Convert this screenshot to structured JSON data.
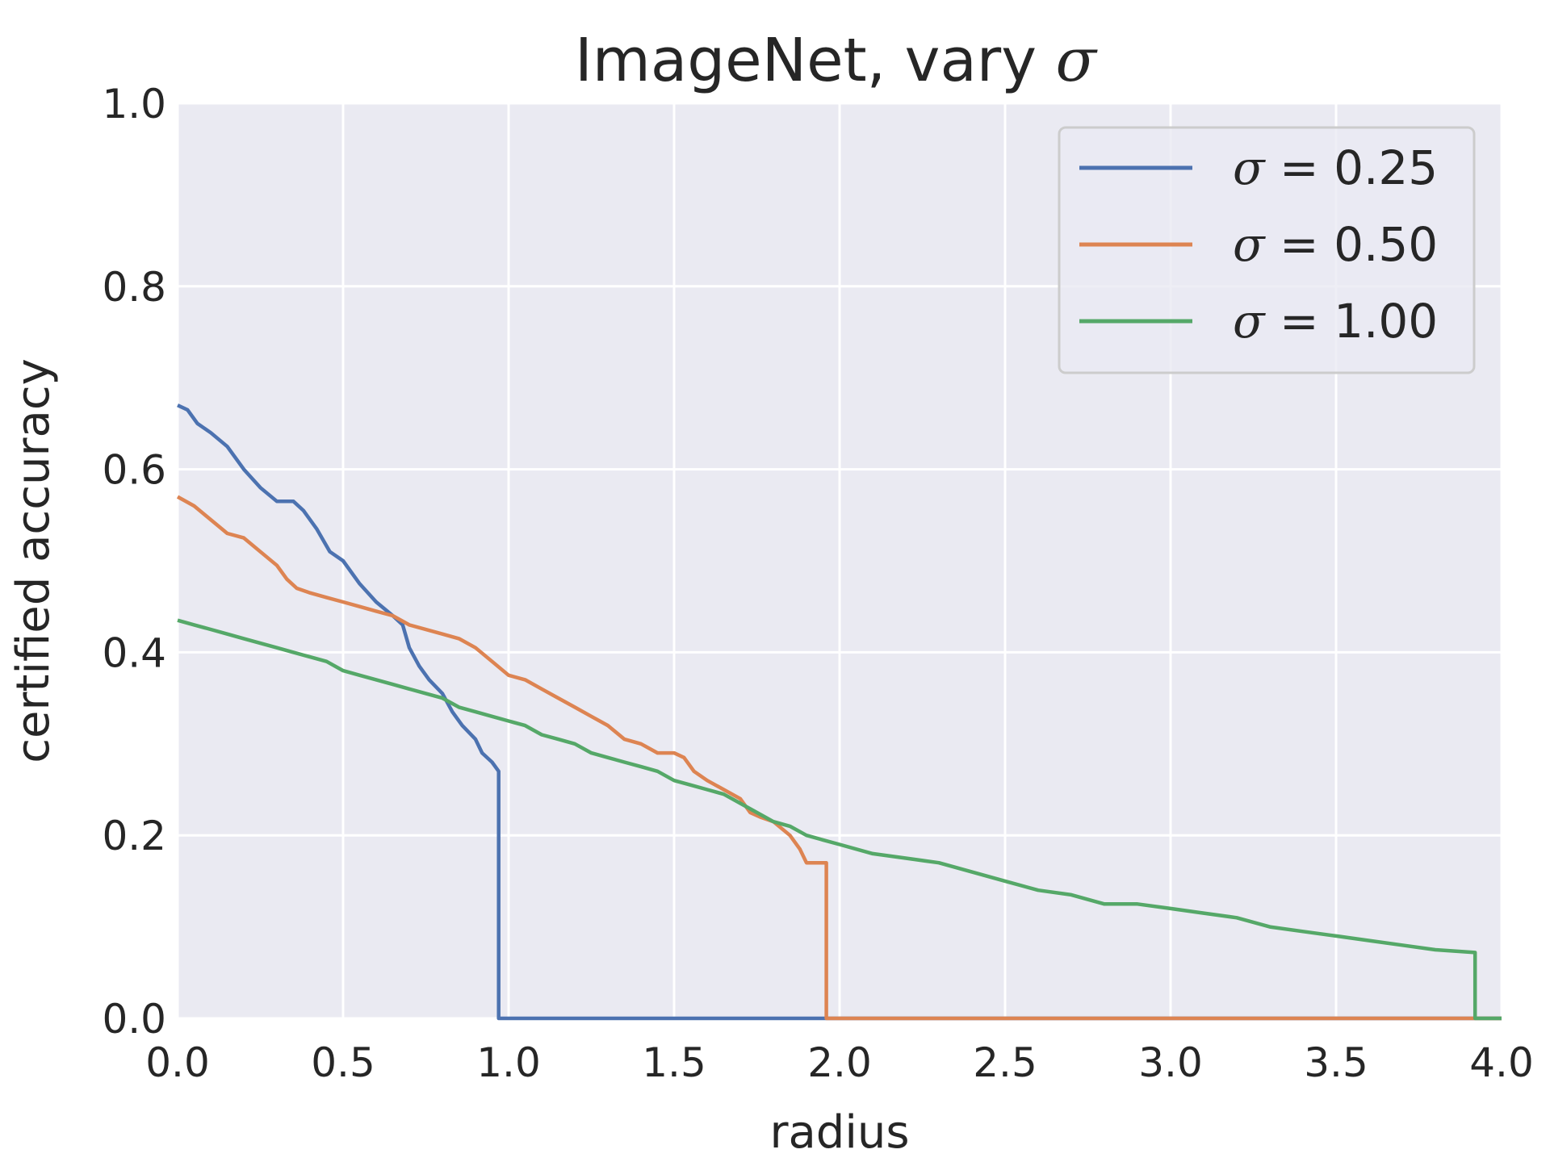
{
  "chart_data": {
    "type": "line",
    "title_prefix": "ImageNet, vary ",
    "title_symbol": "σ",
    "xlabel": "radius",
    "ylabel": "certified accuracy",
    "xlim": [
      0,
      4
    ],
    "ylim": [
      0,
      1
    ],
    "x_ticks": [
      0,
      0.5,
      1,
      1.5,
      2,
      2.5,
      3,
      3.5,
      4
    ],
    "y_ticks": [
      0,
      0.2,
      0.4,
      0.6,
      0.8,
      1
    ],
    "x_tick_labels": [
      "0.0",
      "0.5",
      "1.0",
      "1.5",
      "2.0",
      "2.5",
      "3.0",
      "3.5",
      "4.0"
    ],
    "y_tick_labels": [
      "0.0",
      "0.2",
      "0.4",
      "0.6",
      "0.8",
      "1.0"
    ],
    "grid": true,
    "legend_position": "top-right",
    "background": "#eaeaf2",
    "series": [
      {
        "name_symbol": "σ",
        "name_value": "= 0.25",
        "color": "#4c72b0",
        "points": [
          [
            0,
            0.67
          ],
          [
            0.03,
            0.665
          ],
          [
            0.06,
            0.65
          ],
          [
            0.1,
            0.64
          ],
          [
            0.15,
            0.625
          ],
          [
            0.2,
            0.6
          ],
          [
            0.25,
            0.58
          ],
          [
            0.3,
            0.565
          ],
          [
            0.35,
            0.565
          ],
          [
            0.38,
            0.555
          ],
          [
            0.42,
            0.535
          ],
          [
            0.46,
            0.51
          ],
          [
            0.5,
            0.5
          ],
          [
            0.55,
            0.475
          ],
          [
            0.6,
            0.455
          ],
          [
            0.65,
            0.44
          ],
          [
            0.68,
            0.43
          ],
          [
            0.7,
            0.405
          ],
          [
            0.73,
            0.385
          ],
          [
            0.76,
            0.37
          ],
          [
            0.8,
            0.355
          ],
          [
            0.83,
            0.335
          ],
          [
            0.86,
            0.32
          ],
          [
            0.9,
            0.305
          ],
          [
            0.92,
            0.29
          ],
          [
            0.95,
            0.28
          ],
          [
            0.97,
            0.27
          ],
          [
            0.97,
            0.0
          ],
          [
            4.0,
            0.0
          ]
        ]
      },
      {
        "name_symbol": "σ",
        "name_value": "= 0.50",
        "color": "#dd8452",
        "points": [
          [
            0,
            0.57
          ],
          [
            0.05,
            0.56
          ],
          [
            0.1,
            0.545
          ],
          [
            0.15,
            0.53
          ],
          [
            0.2,
            0.525
          ],
          [
            0.25,
            0.51
          ],
          [
            0.3,
            0.495
          ],
          [
            0.33,
            0.48
          ],
          [
            0.36,
            0.47
          ],
          [
            0.4,
            0.465
          ],
          [
            0.45,
            0.46
          ],
          [
            0.5,
            0.455
          ],
          [
            0.55,
            0.45
          ],
          [
            0.6,
            0.445
          ],
          [
            0.65,
            0.44
          ],
          [
            0.7,
            0.43
          ],
          [
            0.8,
            0.42
          ],
          [
            0.85,
            0.415
          ],
          [
            0.9,
            0.405
          ],
          [
            0.95,
            0.39
          ],
          [
            1.0,
            0.375
          ],
          [
            1.05,
            0.37
          ],
          [
            1.1,
            0.36
          ],
          [
            1.15,
            0.35
          ],
          [
            1.2,
            0.34
          ],
          [
            1.25,
            0.33
          ],
          [
            1.3,
            0.32
          ],
          [
            1.35,
            0.305
          ],
          [
            1.4,
            0.3
          ],
          [
            1.45,
            0.29
          ],
          [
            1.5,
            0.29
          ],
          [
            1.53,
            0.285
          ],
          [
            1.56,
            0.27
          ],
          [
            1.6,
            0.26
          ],
          [
            1.65,
            0.25
          ],
          [
            1.7,
            0.24
          ],
          [
            1.73,
            0.225
          ],
          [
            1.76,
            0.22
          ],
          [
            1.8,
            0.215
          ],
          [
            1.85,
            0.2
          ],
          [
            1.88,
            0.185
          ],
          [
            1.9,
            0.17
          ],
          [
            1.96,
            0.17
          ],
          [
            1.96,
            0.0
          ],
          [
            4.0,
            0.0
          ]
        ]
      },
      {
        "name_symbol": "σ",
        "name_value": "= 1.00",
        "color": "#55a868",
        "points": [
          [
            0,
            0.435
          ],
          [
            0.05,
            0.43
          ],
          [
            0.1,
            0.425
          ],
          [
            0.15,
            0.42
          ],
          [
            0.2,
            0.415
          ],
          [
            0.25,
            0.41
          ],
          [
            0.3,
            0.405
          ],
          [
            0.35,
            0.4
          ],
          [
            0.4,
            0.395
          ],
          [
            0.45,
            0.39
          ],
          [
            0.5,
            0.38
          ],
          [
            0.55,
            0.375
          ],
          [
            0.6,
            0.37
          ],
          [
            0.65,
            0.365
          ],
          [
            0.7,
            0.36
          ],
          [
            0.75,
            0.355
          ],
          [
            0.8,
            0.35
          ],
          [
            0.85,
            0.34
          ],
          [
            0.9,
            0.335
          ],
          [
            0.95,
            0.33
          ],
          [
            1.0,
            0.325
          ],
          [
            1.05,
            0.32
          ],
          [
            1.1,
            0.31
          ],
          [
            1.15,
            0.305
          ],
          [
            1.2,
            0.3
          ],
          [
            1.25,
            0.29
          ],
          [
            1.3,
            0.285
          ],
          [
            1.35,
            0.28
          ],
          [
            1.4,
            0.275
          ],
          [
            1.45,
            0.27
          ],
          [
            1.5,
            0.26
          ],
          [
            1.55,
            0.255
          ],
          [
            1.6,
            0.25
          ],
          [
            1.65,
            0.245
          ],
          [
            1.7,
            0.235
          ],
          [
            1.75,
            0.225
          ],
          [
            1.8,
            0.215
          ],
          [
            1.85,
            0.21
          ],
          [
            1.9,
            0.2
          ],
          [
            1.95,
            0.195
          ],
          [
            2.0,
            0.19
          ],
          [
            2.1,
            0.18
          ],
          [
            2.2,
            0.175
          ],
          [
            2.3,
            0.17
          ],
          [
            2.4,
            0.16
          ],
          [
            2.5,
            0.15
          ],
          [
            2.6,
            0.14
          ],
          [
            2.7,
            0.135
          ],
          [
            2.8,
            0.125
          ],
          [
            2.9,
            0.125
          ],
          [
            3.0,
            0.12
          ],
          [
            3.1,
            0.115
          ],
          [
            3.2,
            0.11
          ],
          [
            3.3,
            0.1
          ],
          [
            3.4,
            0.095
          ],
          [
            3.5,
            0.09
          ],
          [
            3.6,
            0.085
          ],
          [
            3.7,
            0.08
          ],
          [
            3.8,
            0.075
          ],
          [
            3.92,
            0.072
          ],
          [
            3.92,
            0.0
          ],
          [
            4.0,
            0.0
          ]
        ]
      }
    ]
  }
}
